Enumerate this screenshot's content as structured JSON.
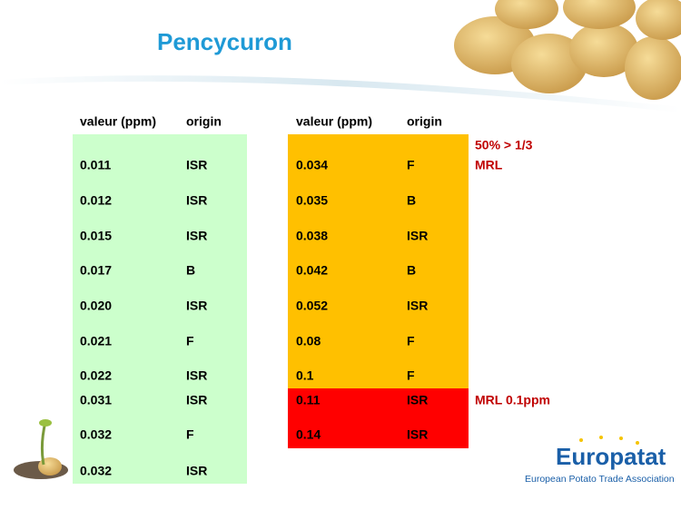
{
  "header": {
    "title": "Pencycuron"
  },
  "left_table": {
    "header": [
      "valeur (ppm)",
      "origin"
    ],
    "color": "#ccffcc",
    "rows": [
      [
        "0.011",
        "ISR"
      ],
      [
        "0.012",
        "ISR"
      ],
      [
        "0.015",
        "ISR"
      ],
      [
        "0.017",
        "B"
      ],
      [
        "0.020",
        "ISR"
      ],
      [
        "0.021",
        "F"
      ],
      [
        "0.022",
        "ISR"
      ],
      [
        "0.031",
        "ISR"
      ],
      [
        "0.032",
        "F"
      ],
      [
        "0.032",
        "ISR"
      ]
    ]
  },
  "right_table": {
    "header": [
      "valeur (ppm)",
      "origin"
    ],
    "groups": [
      {
        "color": "#ffc000",
        "rows": [
          [
            "0.034",
            "F"
          ],
          [
            "0.035",
            "B"
          ],
          [
            "0.038",
            "ISR"
          ],
          [
            "0.042",
            "B"
          ],
          [
            "0.052",
            "ISR"
          ],
          [
            "0.08",
            "F"
          ],
          [
            "0.1",
            "F"
          ]
        ]
      },
      {
        "color": "#ff0000",
        "rows": [
          [
            "0.11",
            "ISR"
          ],
          [
            "0.14",
            "ISR"
          ]
        ]
      }
    ]
  },
  "annotations": [
    "50% > 1/3",
    "MRL",
    "MRL 0.1ppm"
  ],
  "logo": {
    "name": "Europatat",
    "tagline": "European Potato Trade Association"
  }
}
